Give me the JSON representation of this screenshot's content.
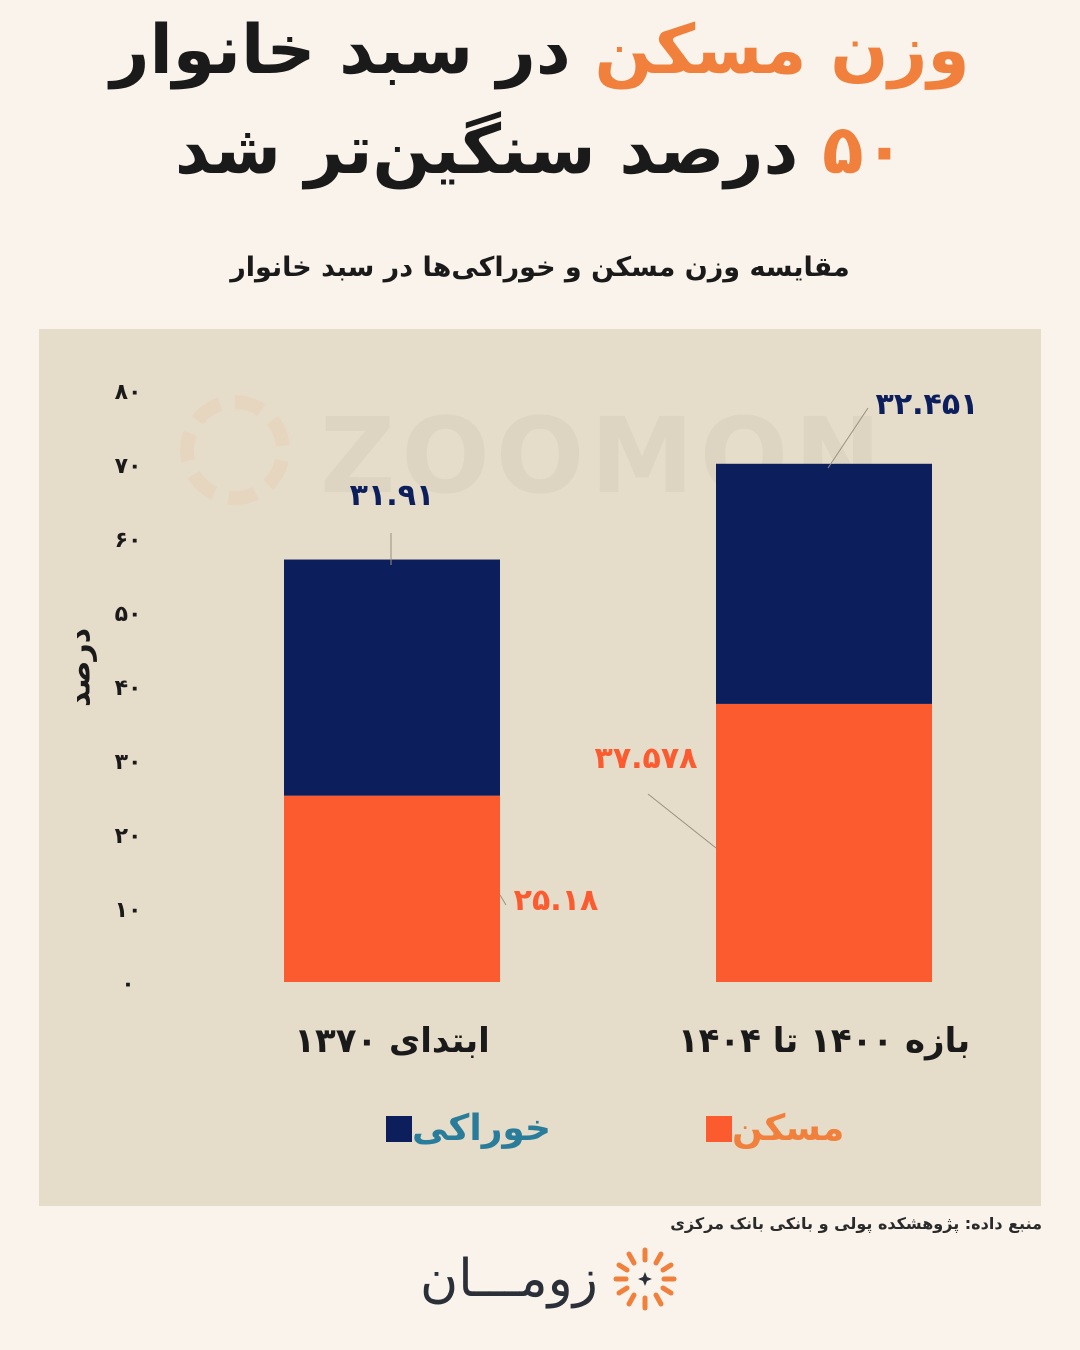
{
  "title": {
    "line1_accent": "وزن مسکن",
    "line1_rest": "در سبد خانوار",
    "line2_accent": "۵۰",
    "line2_rest": "درصد سنگین‌تر شد"
  },
  "colors": {
    "background": "#f9f3eb",
    "panel": "#e6dcca",
    "housing": "#fc5b2f",
    "food": "#0c1f5c",
    "accent": "#f0803c",
    "legend_food_text": "#2a7d9a",
    "legend_housing_text": "#f0803c"
  },
  "watermark": "ZOOMON",
  "source": "منبع داده: پژوهشکده پولی و بانکی بانک مرکزی",
  "brand": {
    "name": "زومـــان",
    "logo_icon": "sunburst-logo-icon"
  },
  "chart_data": {
    "type": "bar",
    "stacked": true,
    "title": "مقایسه وزن مسکن و خوراکی‌ها در سبد خانوار",
    "xlabel": "",
    "ylabel": "درصد",
    "ylim": [
      0,
      80
    ],
    "yticks": [
      0,
      10,
      20,
      30,
      40,
      50,
      60,
      70,
      80
    ],
    "ytick_labels": [
      "۰",
      "۱۰",
      "۲۰",
      "۳۰",
      "۴۰",
      "۵۰",
      "۶۰",
      "۷۰",
      "۸۰"
    ],
    "grid": false,
    "legend_position": "bottom",
    "categories": [
      "ابتدای ۱۳۷۰",
      "بازه ۱۴۰۰ تا ۱۴۰۴"
    ],
    "series": [
      {
        "name": "مسکن",
        "color": "#fc5b2f",
        "values": [
          25.18,
          37.578
        ],
        "labels": [
          "۲۵.۱۸",
          "۳۷.۵۷۸"
        ]
      },
      {
        "name": "خوراکی",
        "color": "#0c1f5c",
        "values": [
          31.91,
          32.451
        ],
        "labels": [
          "۳۱.۹۱",
          "۳۲.۴۵۱"
        ]
      }
    ]
  }
}
